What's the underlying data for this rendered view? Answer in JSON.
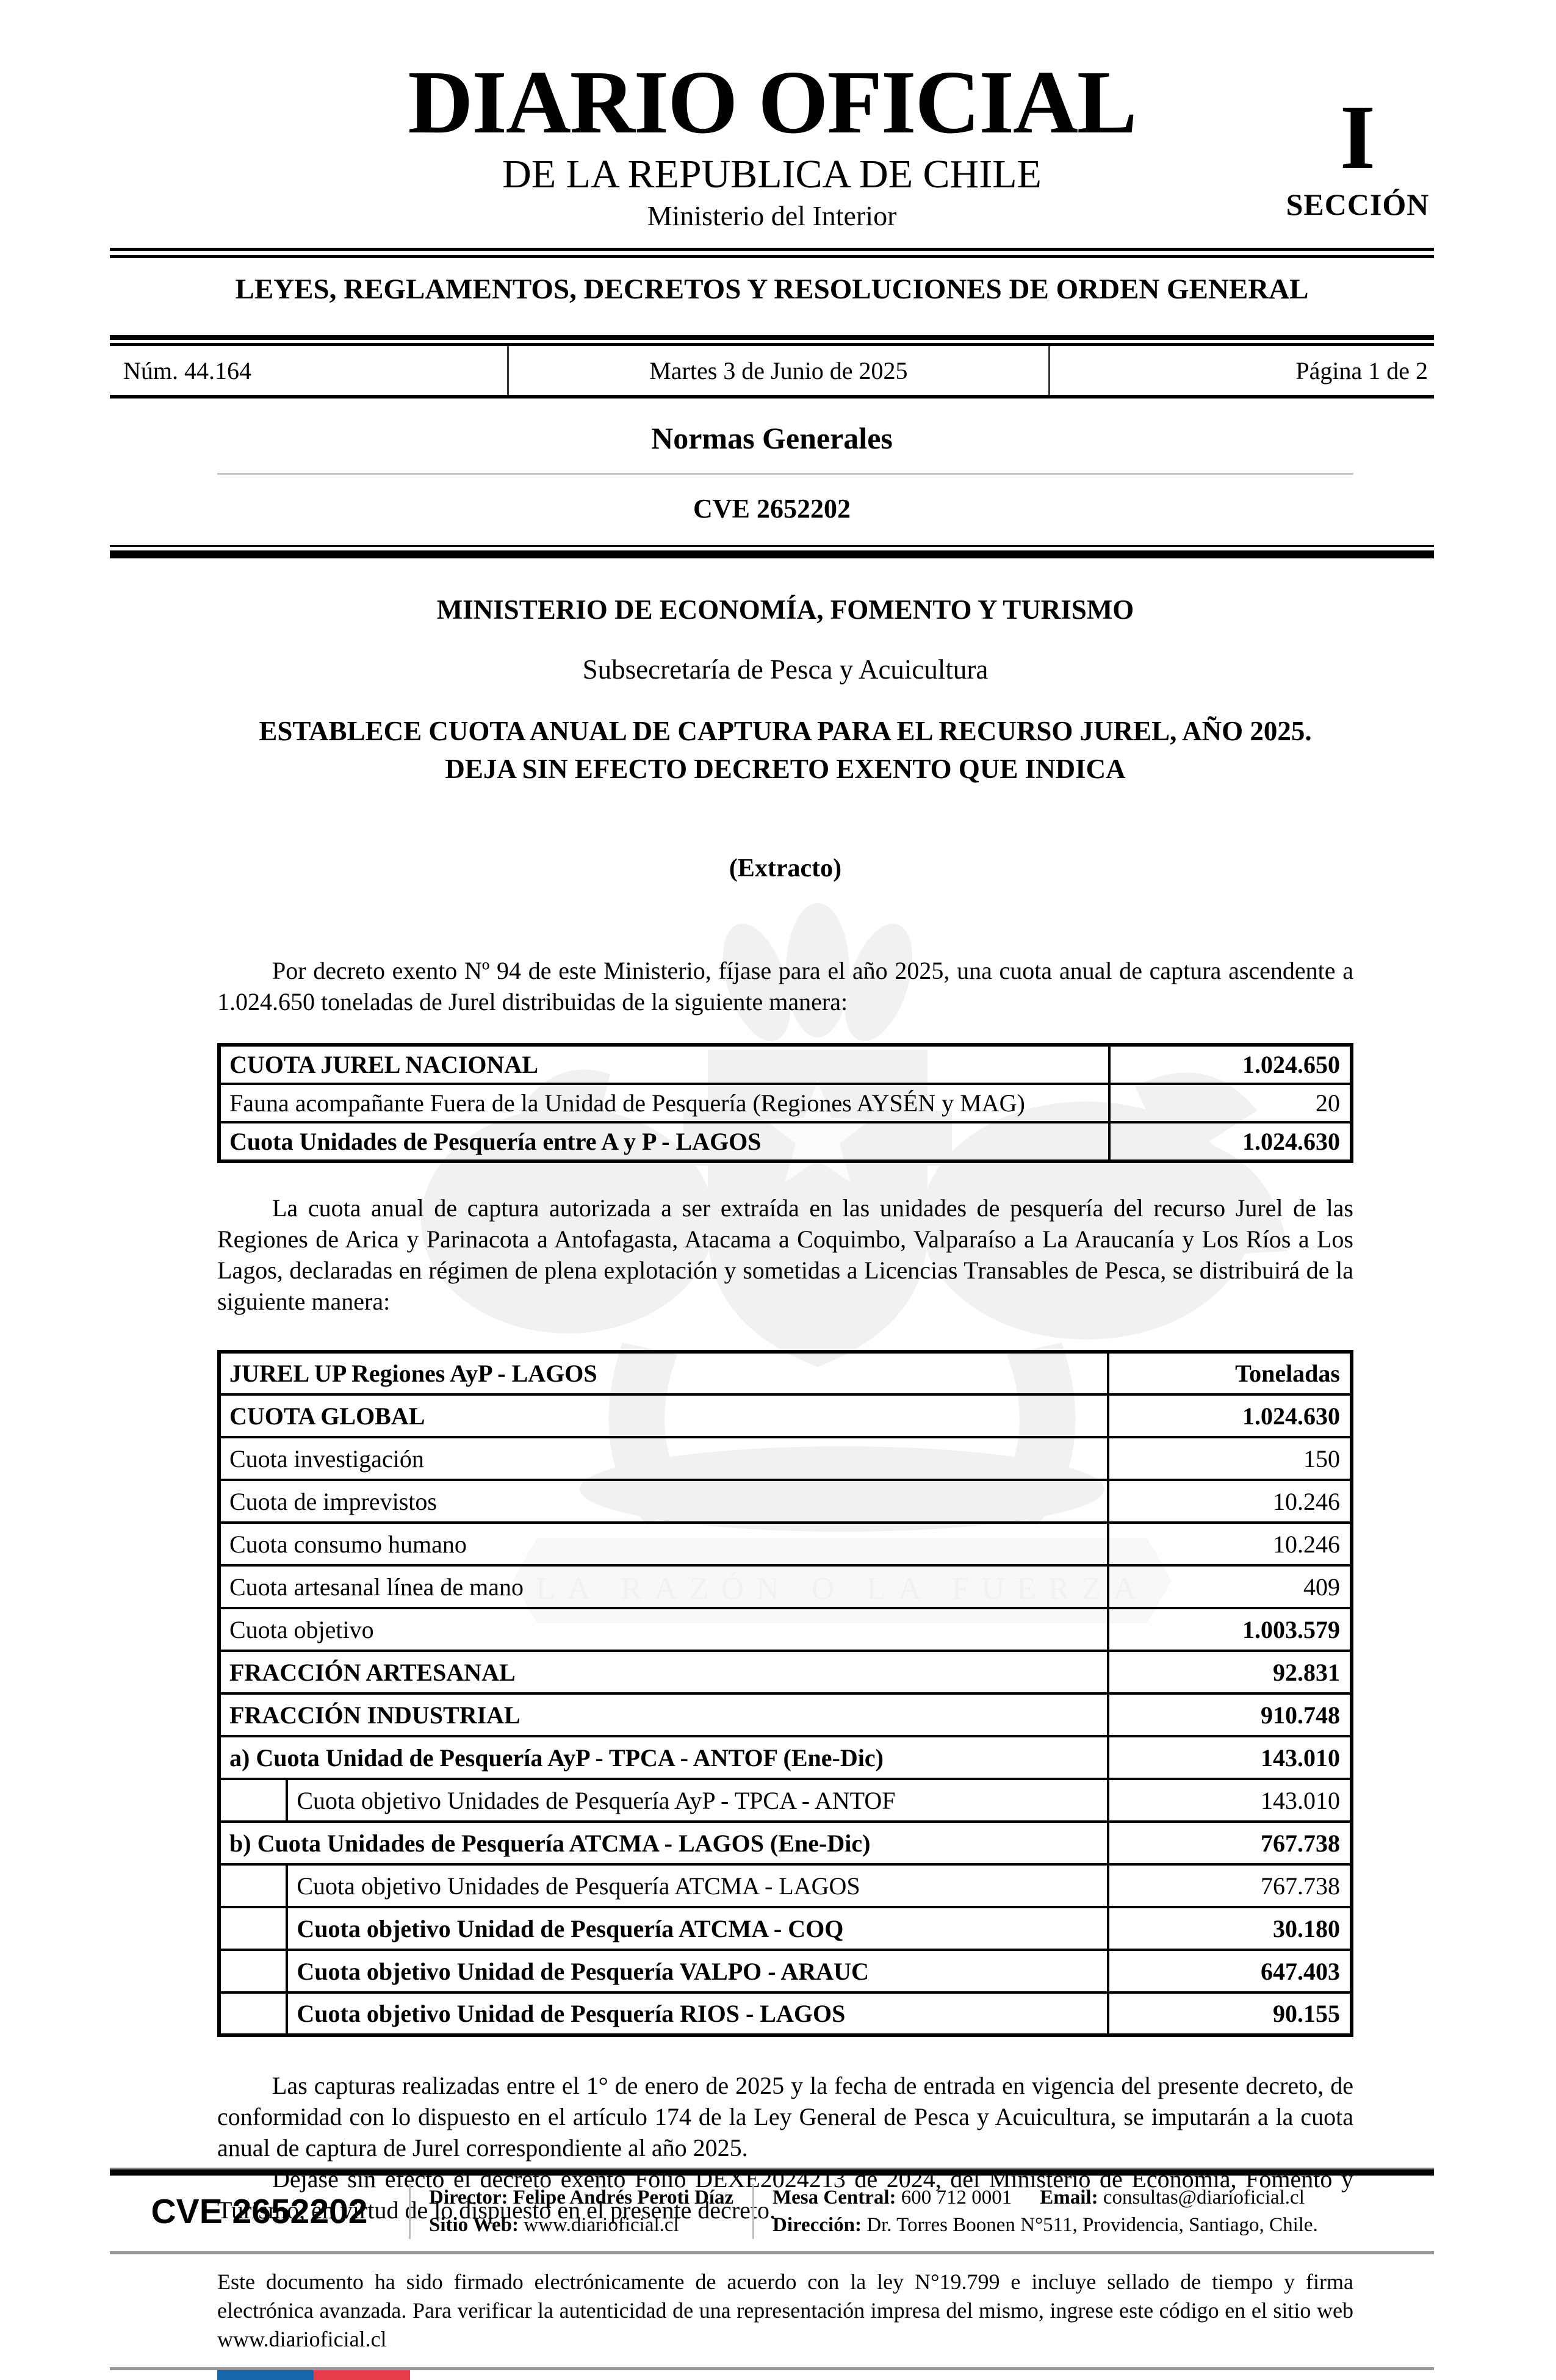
{
  "masthead": {
    "title": "DIARIO OFICIAL",
    "subtitle": "DE LA REPUBLICA DE CHILE",
    "ministry": "Ministerio del Interior",
    "section_number": "I",
    "section_label": "SECCIÓN"
  },
  "banner": "LEYES, REGLAMENTOS, DECRETOS Y RESOLUCIONES DE ORDEN GENERAL",
  "issue": {
    "number": "Núm. 44.164",
    "date": "Martes 3 de Junio de 2025",
    "page": "Página 1 de 2"
  },
  "section_heading": "Normas Generales",
  "cve_heading": "CVE 2652202",
  "article": {
    "ministry": "MINISTERIO DE ECONOMÍA, FOMENTO Y TURISMO",
    "subsecretary": "Subsecretaría de Pesca y Acuicultura",
    "title_line1": "ESTABLECE CUOTA ANUAL DE CAPTURA PARA EL RECURSO JUREL, AÑO 2025.",
    "title_line2": "DEJA SIN EFECTO DECRETO EXENTO QUE INDICA",
    "extract_label": "(Extracto)",
    "paragraph1": "Por decreto exento Nº 94 de este Ministerio, fíjase para el año 2025, una cuota anual de captura ascendente a 1.024.650 toneladas de Jurel distribuidas de la siguiente manera:",
    "paragraph2": "La cuota anual de captura autorizada a ser extraída en las unidades de pesquería del recurso Jurel de las Regiones de Arica y Parinacota a Antofagasta, Atacama a Coquimbo, Valparaíso a La Araucanía y Los Ríos a Los Lagos, declaradas en régimen de plena explotación y sometidas a Licencias Transables de Pesca, se distribuirá de la siguiente manera:",
    "paragraph3": "Las capturas realizadas entre el 1° de enero de 2025 y la fecha de entrada en vigencia del presente decreto, de conformidad con lo dispuesto en el artículo 174 de la Ley General de Pesca y Acuicultura, se imputarán a la cuota anual de captura de Jurel correspondiente al año 2025.",
    "paragraph4": "Déjase sin efecto el decreto exento Folio DEXE2024213 de 2024, del Ministerio de Economía, Fomento y Turismo, en virtud de lo dispuesto en el presente decreto."
  },
  "table1": {
    "rows": [
      {
        "label": "CUOTA JUREL NACIONAL",
        "value": "1.024.650",
        "label_bold": true,
        "value_bold": true
      },
      {
        "label": "Fauna acompañante Fuera de la Unidad de Pesquería (Regiones AYSÉN y MAG)",
        "value": "20",
        "label_bold": false,
        "value_bold": false
      },
      {
        "label": "Cuota Unidades de Pesquería entre A y P - LAGOS",
        "value": "1.024.630",
        "label_bold": true,
        "value_bold": true
      }
    ]
  },
  "table2": {
    "header": {
      "label": "JUREL UP Regiones AyP - LAGOS",
      "value": "Toneladas"
    },
    "rows": [
      {
        "label": "CUOTA GLOBAL",
        "value": "1.024.630",
        "label_bold": true,
        "value_bold": true,
        "indent": false
      },
      {
        "label": "Cuota investigación",
        "value": "150",
        "label_bold": false,
        "value_bold": false,
        "indent": false
      },
      {
        "label": "Cuota de imprevistos",
        "value": "10.246",
        "label_bold": false,
        "value_bold": false,
        "indent": false
      },
      {
        "label": "Cuota consumo humano",
        "value": "10.246",
        "label_bold": false,
        "value_bold": false,
        "indent": false
      },
      {
        "label": "Cuota artesanal línea de mano",
        "value": "409",
        "label_bold": false,
        "value_bold": false,
        "indent": false
      },
      {
        "label": "Cuota objetivo",
        "value": "1.003.579",
        "label_bold": false,
        "value_bold": true,
        "indent": false
      },
      {
        "label": "FRACCIÓN ARTESANAL",
        "value": "92.831",
        "label_bold": true,
        "value_bold": true,
        "indent": false
      },
      {
        "label": "FRACCIÓN INDUSTRIAL",
        "value": "910.748",
        "label_bold": true,
        "value_bold": true,
        "indent": false
      },
      {
        "label": "a) Cuota Unidad de Pesquería AyP - TPCA - ANTOF (Ene-Dic)",
        "value": "143.010",
        "label_bold": true,
        "value_bold": true,
        "indent": false
      },
      {
        "label": "Cuota objetivo Unidades de Pesquería AyP - TPCA - ANTOF",
        "value": "143.010",
        "label_bold": false,
        "value_bold": false,
        "indent": true
      },
      {
        "label": "b) Cuota Unidades de Pesquería ATCMA - LAGOS (Ene-Dic)",
        "value": "767.738",
        "label_bold": true,
        "value_bold": true,
        "indent": false
      },
      {
        "label": "Cuota objetivo Unidades de Pesquería ATCMA - LAGOS",
        "value": "767.738",
        "label_bold": false,
        "value_bold": false,
        "indent": true
      },
      {
        "label": "Cuota objetivo Unidad de Pesquería ATCMA - COQ",
        "value": "30.180",
        "label_bold": true,
        "value_bold": true,
        "indent": true
      },
      {
        "label": "Cuota objetivo Unidad de Pesquería VALPO - ARAUC",
        "value": "647.403",
        "label_bold": true,
        "value_bold": true,
        "indent": true
      },
      {
        "label": "Cuota objetivo Unidad de Pesquería RIOS - LAGOS",
        "value": "90.155",
        "label_bold": true,
        "value_bold": true,
        "indent": true
      }
    ]
  },
  "footer": {
    "cve": "CVE 2652202",
    "director_label": "Director:",
    "director": "Felipe Andrés Peroti Díaz",
    "sitio_label": "Sitio Web:",
    "sitio": "www.diarioficial.cl",
    "mesa_label": "Mesa Central:",
    "mesa": "600 712 0001",
    "email_label": "Email:",
    "email": "consultas@diarioficial.cl",
    "direccion_label": "Dirección:",
    "direccion": "Dr. Torres Boonen N°511, Providencia, Santiago, Chile.",
    "legal": "Este documento ha sido firmado electrónicamente de acuerdo con la ley N°19.799 e incluye sellado de tiempo y firma electrónica avanzada. Para verificar la autenticidad de una representación impresa del mismo, ingrese este código en el sitio web www.diarioficial.cl",
    "flag_blue": "#1766ac",
    "flag_red": "#e63c4c"
  },
  "watermark": {
    "motto": "LA RAZÓN O LA FUERZA"
  }
}
